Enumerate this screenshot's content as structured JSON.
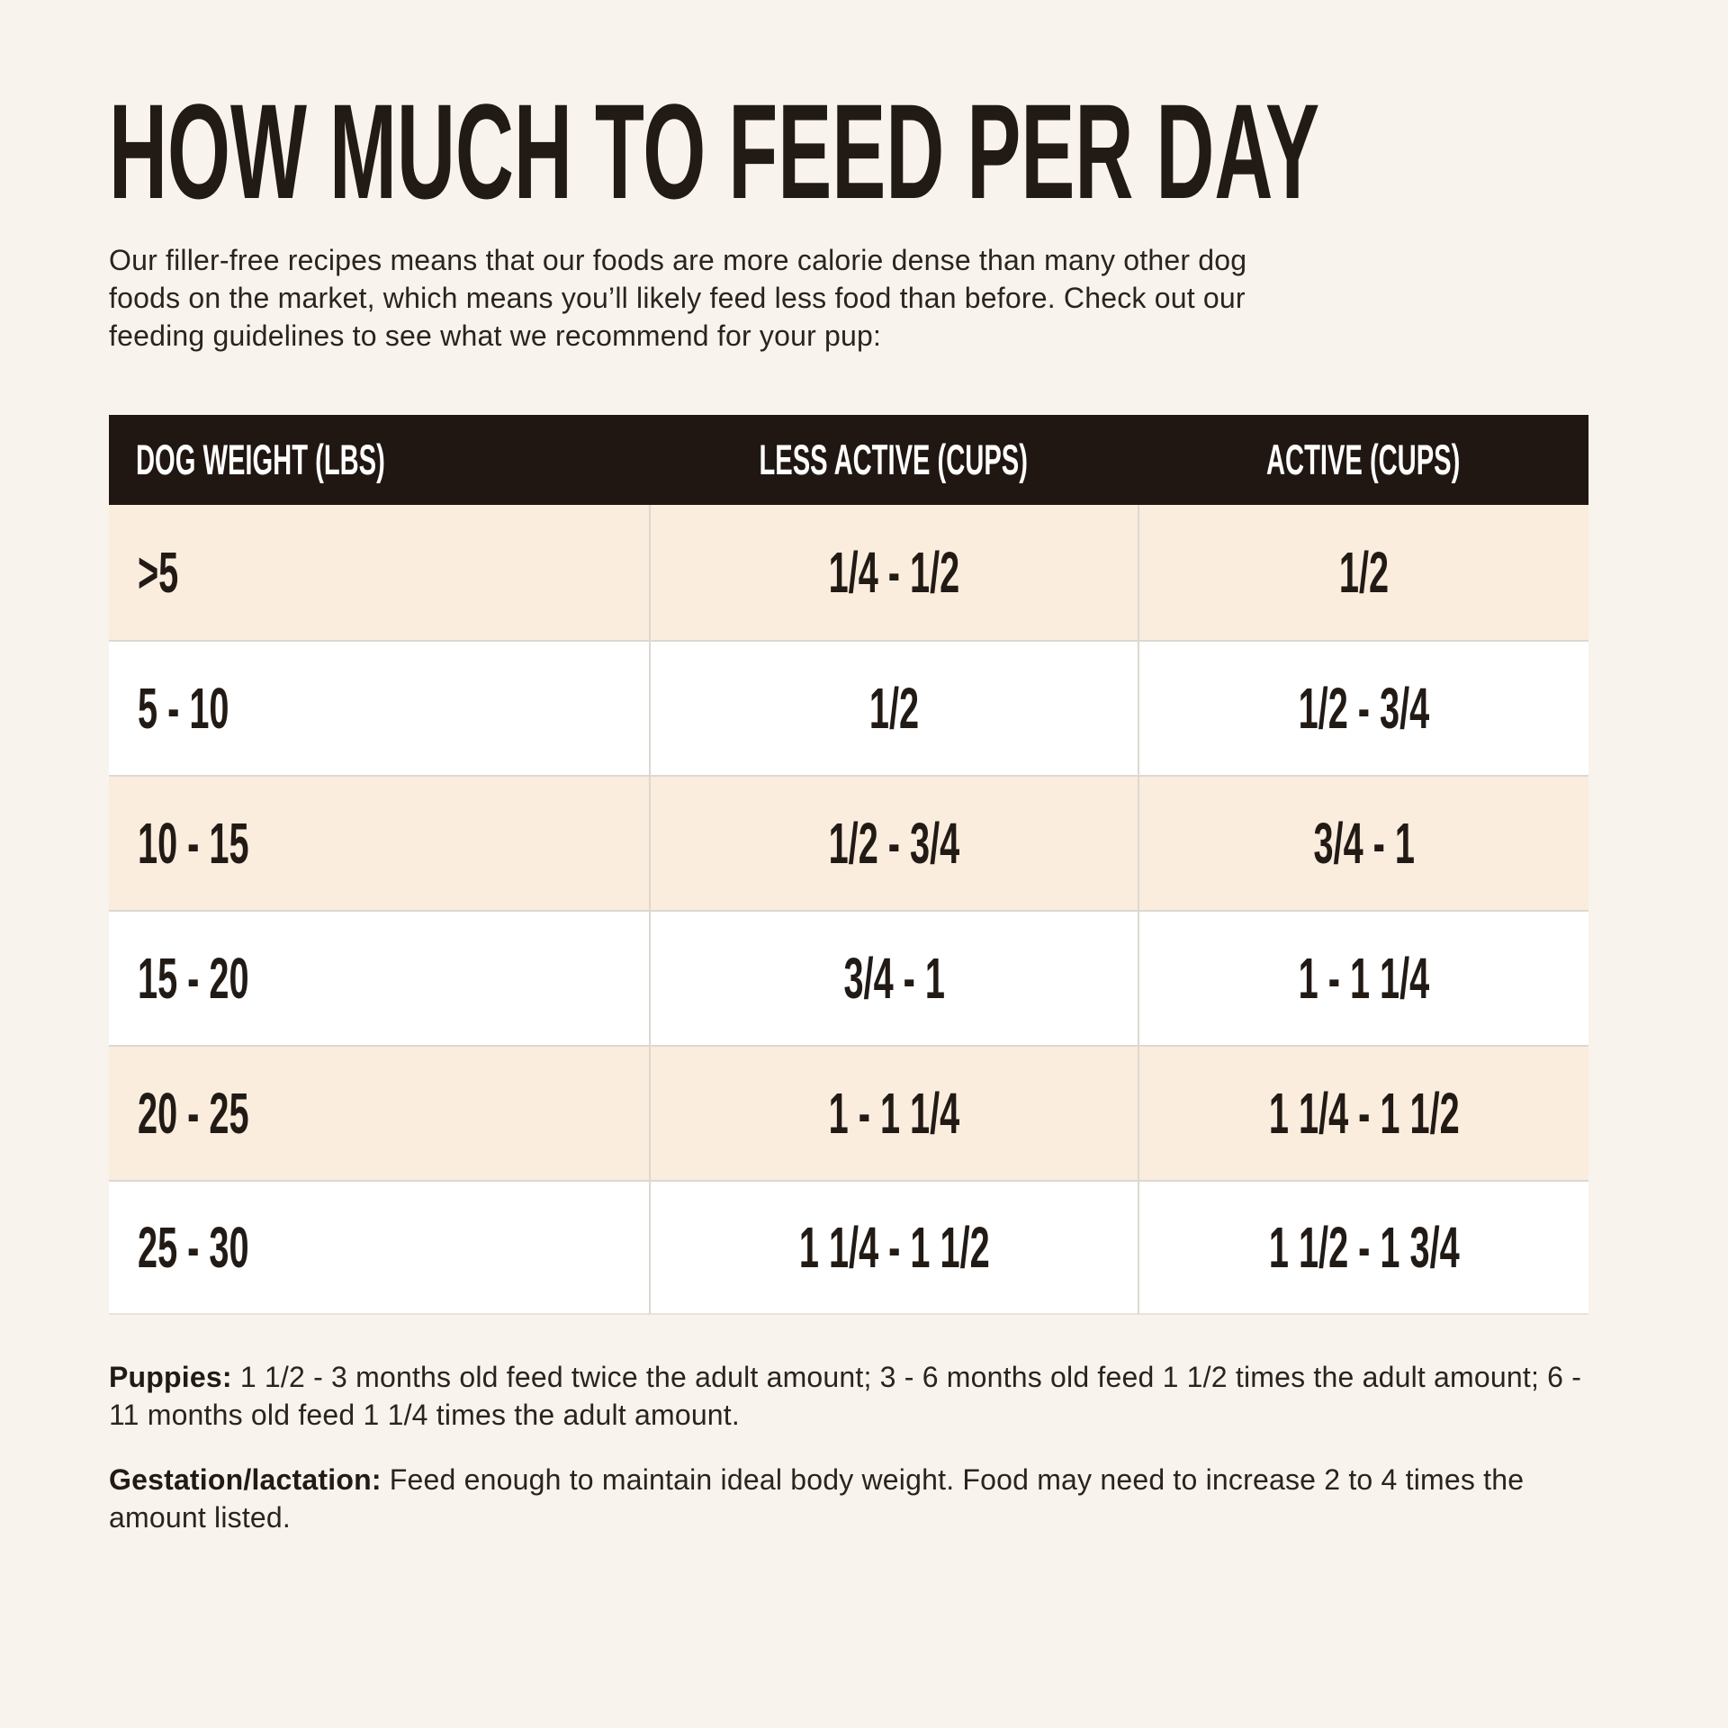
{
  "page": {
    "title": "HOW MUCH TO FEED PER DAY",
    "intro": "Our filler-free recipes means that our foods are more calorie dense than many other dog foods on the market, which means you’ll likely feed less food than before. Check out our feeding guidelines to see what we recommend for your pup:"
  },
  "table": {
    "columns": [
      "DOG WEIGHT (LBS)",
      "LESS ACTIVE (CUPS)",
      "ACTIVE (CUPS)"
    ],
    "rows": [
      {
        "weight": ">5",
        "less_active": "1/4 - 1/2",
        "active": "1/2"
      },
      {
        "weight": "5 - 10",
        "less_active": "1/2",
        "active": "1/2 - 3/4"
      },
      {
        "weight": "10 - 15",
        "less_active": "1/2 - 3/4",
        "active": "3/4 - 1"
      },
      {
        "weight": "15 - 20",
        "less_active": "3/4 - 1",
        "active": "1 - 1 1/4"
      },
      {
        "weight": "20 - 25",
        "less_active": "1 - 1 1/4",
        "active": "1 1/4 - 1 1/2"
      },
      {
        "weight": "25 - 30",
        "less_active": "1 1/4 - 1 1/2",
        "active": "1 1/2 - 1 3/4"
      }
    ]
  },
  "notes": [
    {
      "label": "Puppies:",
      "text": " 1 1/2 - 3 months old feed twice the adult amount; 3 - 6 months old feed 1 1/2 times the adult amount; 6 - 11 months old feed 1 1/4 times the adult amount."
    },
    {
      "label": "Gestation/lactation:",
      "text": " Feed enough to maintain ideal body weight. Food may need to increase 2 to 4 times the amount listed."
    }
  ],
  "colors": {
    "page_background": "#f8f3ec",
    "table_header_background": "#211712",
    "table_header_text": "#ffffff",
    "row_beige": "#faedde",
    "row_white": "#ffffff",
    "ink": "#221a15",
    "divider": "#ddd8d1"
  }
}
